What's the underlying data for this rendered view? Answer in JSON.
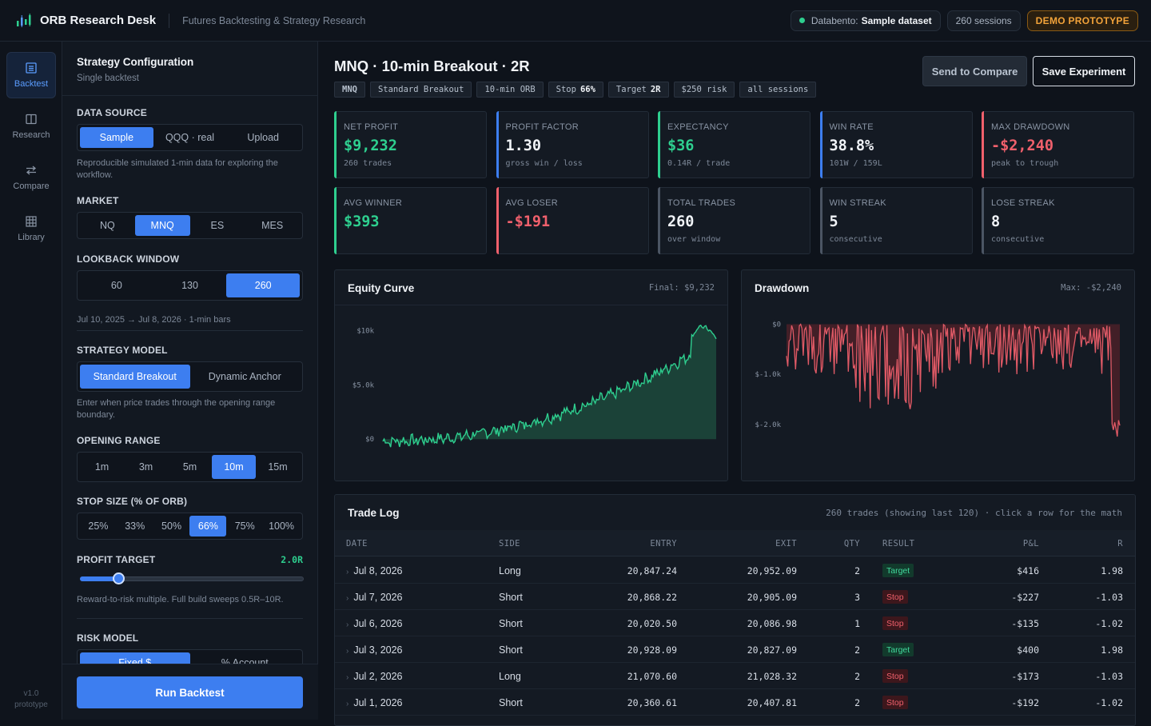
{
  "app": {
    "title": "ORB Research Desk",
    "subtitle": "Futures Backtesting & Strategy Research",
    "datasource_label": "Databento:",
    "datasource_value": "Sample dataset",
    "sessions_badge": "260 sessions",
    "demo_badge": "DEMO PROTOTYPE"
  },
  "rail": {
    "items": [
      {
        "label": "Backtest",
        "icon": "list-icon"
      },
      {
        "label": "Research",
        "icon": "book-icon"
      },
      {
        "label": "Compare",
        "icon": "compare-arrows-icon"
      },
      {
        "label": "Library",
        "icon": "grid-icon"
      }
    ],
    "version": "v1.0",
    "version_sub": "prototype"
  },
  "config": {
    "title": "Strategy Configuration",
    "subtitle": "Single backtest",
    "data_source": {
      "label": "DATA SOURCE",
      "options": [
        "Sample",
        "QQQ · real",
        "Upload"
      ],
      "selected": "Sample",
      "hint": "Reproducible simulated 1-min data for exploring the workflow."
    },
    "market": {
      "label": "MARKET",
      "options": [
        "NQ",
        "MNQ",
        "ES",
        "MES"
      ],
      "selected": "MNQ"
    },
    "lookback": {
      "label": "LOOKBACK WINDOW",
      "options": [
        "60",
        "130",
        "260"
      ],
      "selected": "260",
      "hint": "Jul 10, 2025 → Jul 8, 2026 · 1-min bars"
    },
    "strategy_model": {
      "label": "STRATEGY MODEL",
      "options": [
        "Standard Breakout",
        "Dynamic Anchor"
      ],
      "selected": "Standard Breakout",
      "hint": "Enter when price trades through the opening range boundary."
    },
    "opening_range": {
      "label": "OPENING RANGE",
      "options": [
        "1m",
        "3m",
        "5m",
        "10m",
        "15m"
      ],
      "selected": "10m"
    },
    "stop_size": {
      "label": "STOP SIZE (% OF ORB)",
      "options": [
        "25%",
        "33%",
        "50%",
        "66%",
        "75%",
        "100%"
      ],
      "selected": "66%"
    },
    "profit_target": {
      "label": "PROFIT TARGET",
      "value": "2.0R",
      "level_r": 2.0,
      "range_r": [
        0.5,
        10
      ],
      "hint": "Reward-to-risk multiple. Full build sweeps 0.5R–10R."
    },
    "risk_model": {
      "label": "RISK MODEL",
      "options": [
        "Fixed $",
        "% Account"
      ],
      "selected": "Fixed $"
    },
    "run_label": "Run Backtest"
  },
  "main": {
    "title": "MNQ · 10-min Breakout · 2R",
    "tags": [
      {
        "text": "MNQ",
        "bold": true
      },
      {
        "text": "Standard Breakout"
      },
      {
        "text": "10-min ORB"
      },
      {
        "text": "Stop",
        "strong": "66%"
      },
      {
        "text": "Target",
        "strong": "2R"
      },
      {
        "text": "$250 risk"
      },
      {
        "text": "all sessions"
      }
    ],
    "compare_label": "Send to Compare",
    "save_label": "Save Experiment",
    "stats": [
      {
        "key": "NET PROFIT",
        "value": "$9,232",
        "sub": "260 trades",
        "color": "#2ecf8f"
      },
      {
        "key": "PROFIT FACTOR",
        "value": "1.30",
        "sub": "gross win / loss",
        "color": "#3d7ef0"
      },
      {
        "key": "EXPECTANCY",
        "value": "$36",
        "sub": "0.14R / trade",
        "color": "#2ecf8f"
      },
      {
        "key": "WIN RATE",
        "value": "38.8%",
        "sub": "101W / 159L",
        "color": "#3d7ef0"
      },
      {
        "key": "MAX DRAWDOWN",
        "value": "-$2,240",
        "sub": "peak to trough",
        "color": "#f0606c"
      },
      {
        "key": "AVG WINNER",
        "value": "$393",
        "sub": "",
        "color": "#2ecf8f"
      },
      {
        "key": "AVG LOSER",
        "value": "-$191",
        "sub": "",
        "color": "#f0606c"
      },
      {
        "key": "TOTAL TRADES",
        "value": "260",
        "sub": "over window",
        "color": "#4b5563"
      },
      {
        "key": "WIN STREAK",
        "value": "5",
        "sub": "consecutive",
        "color": "#4b5563"
      },
      {
        "key": "LOSE STREAK",
        "value": "8",
        "sub": "consecutive",
        "color": "#4b5563"
      }
    ],
    "equity": {
      "title": "Equity Curve",
      "meta": "Final: $9,232"
    },
    "drawdown": {
      "title": "Drawdown",
      "meta": "Max: -$2,240"
    },
    "trade_log": {
      "title": "Trade Log",
      "meta": "260 trades (showing last 120) · click a row for the math",
      "columns": [
        "DATE",
        "SIDE",
        "ENTRY",
        "EXIT",
        "QTY",
        "RESULT",
        "P&L",
        "R"
      ],
      "rows": [
        {
          "date": "Jul 8, 2026",
          "side": "Long",
          "entry": "20,847.24",
          "exit": "20,952.09",
          "qty": "2",
          "result": "Target",
          "pnl": "$416",
          "r": "1.98"
        },
        {
          "date": "Jul 7, 2026",
          "side": "Short",
          "entry": "20,868.22",
          "exit": "20,905.09",
          "qty": "3",
          "result": "Stop",
          "pnl": "-$227",
          "r": "-1.03"
        },
        {
          "date": "Jul 6, 2026",
          "side": "Short",
          "entry": "20,020.50",
          "exit": "20,086.98",
          "qty": "1",
          "result": "Stop",
          "pnl": "-$135",
          "r": "-1.02"
        },
        {
          "date": "Jul 3, 2026",
          "side": "Short",
          "entry": "20,928.09",
          "exit": "20,827.09",
          "qty": "2",
          "result": "Target",
          "pnl": "$400",
          "r": "1.98"
        },
        {
          "date": "Jul 2, 2026",
          "side": "Long",
          "entry": "21,070.60",
          "exit": "21,028.32",
          "qty": "2",
          "result": "Stop",
          "pnl": "-$173",
          "r": "-1.03"
        },
        {
          "date": "Jul 1, 2026",
          "side": "Short",
          "entry": "20,360.61",
          "exit": "20,407.81",
          "qty": "2",
          "result": "Stop",
          "pnl": "-$192",
          "r": "-1.02"
        }
      ]
    }
  },
  "chart_data": [
    {
      "type": "area",
      "title": "Equity Curve",
      "ylim": [
        -500,
        11500
      ],
      "yticks": [
        "$0",
        "$5.0k",
        "$10k"
      ],
      "ytick_values": [
        0,
        5000,
        10000
      ],
      "color": "#2ecf8f",
      "start": -200,
      "end": 9232,
      "points": 260
    },
    {
      "type": "area",
      "title": "Drawdown",
      "ylim": [
        -2400,
        200
      ],
      "yticks": [
        "$0",
        "$-1.0k",
        "$-2.0k"
      ],
      "ytick_values": [
        0,
        -1000,
        -2000
      ],
      "color": "#e05a66",
      "min": -2240,
      "points": 260
    }
  ]
}
